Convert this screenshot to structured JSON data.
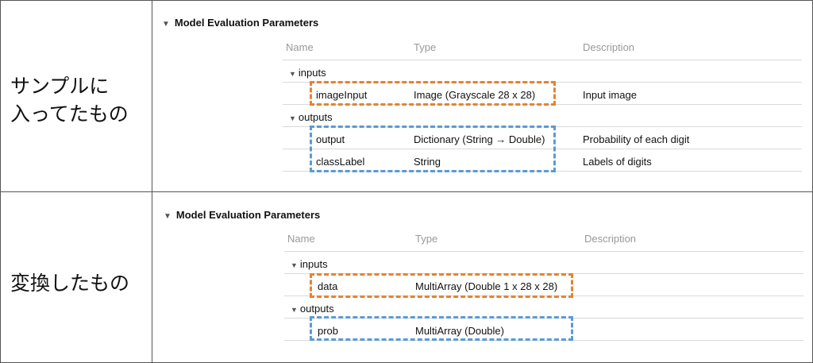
{
  "rows": [
    {
      "label_line1": "サンプルに",
      "label_line2": "入ってたもの",
      "panel": {
        "title": "Model Evaluation Parameters",
        "columns": [
          "Name",
          "Type",
          "Description"
        ],
        "groups": [
          {
            "name": "inputs",
            "items": [
              {
                "name": "imageInput",
                "type": "Image (Grayscale 28 x 28)",
                "description": "Input image"
              }
            ]
          },
          {
            "name": "outputs",
            "items": [
              {
                "name": "output",
                "type": "Dictionary (String → Double)",
                "description": "Probability of each digit"
              },
              {
                "name": "classLabel",
                "type": "String",
                "description": "Labels of digits"
              }
            ]
          }
        ]
      }
    },
    {
      "label_line1": "変換したもの",
      "panel": {
        "title": "Model Evaluation Parameters",
        "columns": [
          "Name",
          "Type",
          "Description"
        ],
        "groups": [
          {
            "name": "inputs",
            "items": [
              {
                "name": "data",
                "type": "MultiArray (Double 1 x 28 x 28)",
                "description": ""
              }
            ]
          },
          {
            "name": "outputs",
            "items": [
              {
                "name": "prob",
                "type": "MultiArray (Double)",
                "description": ""
              }
            ]
          }
        ]
      }
    }
  ],
  "highlight_colors": {
    "inputs": "#e8822e",
    "outputs": "#5b9bd5"
  },
  "icons": {
    "disclosure": "disclosure-triangle-icon"
  }
}
